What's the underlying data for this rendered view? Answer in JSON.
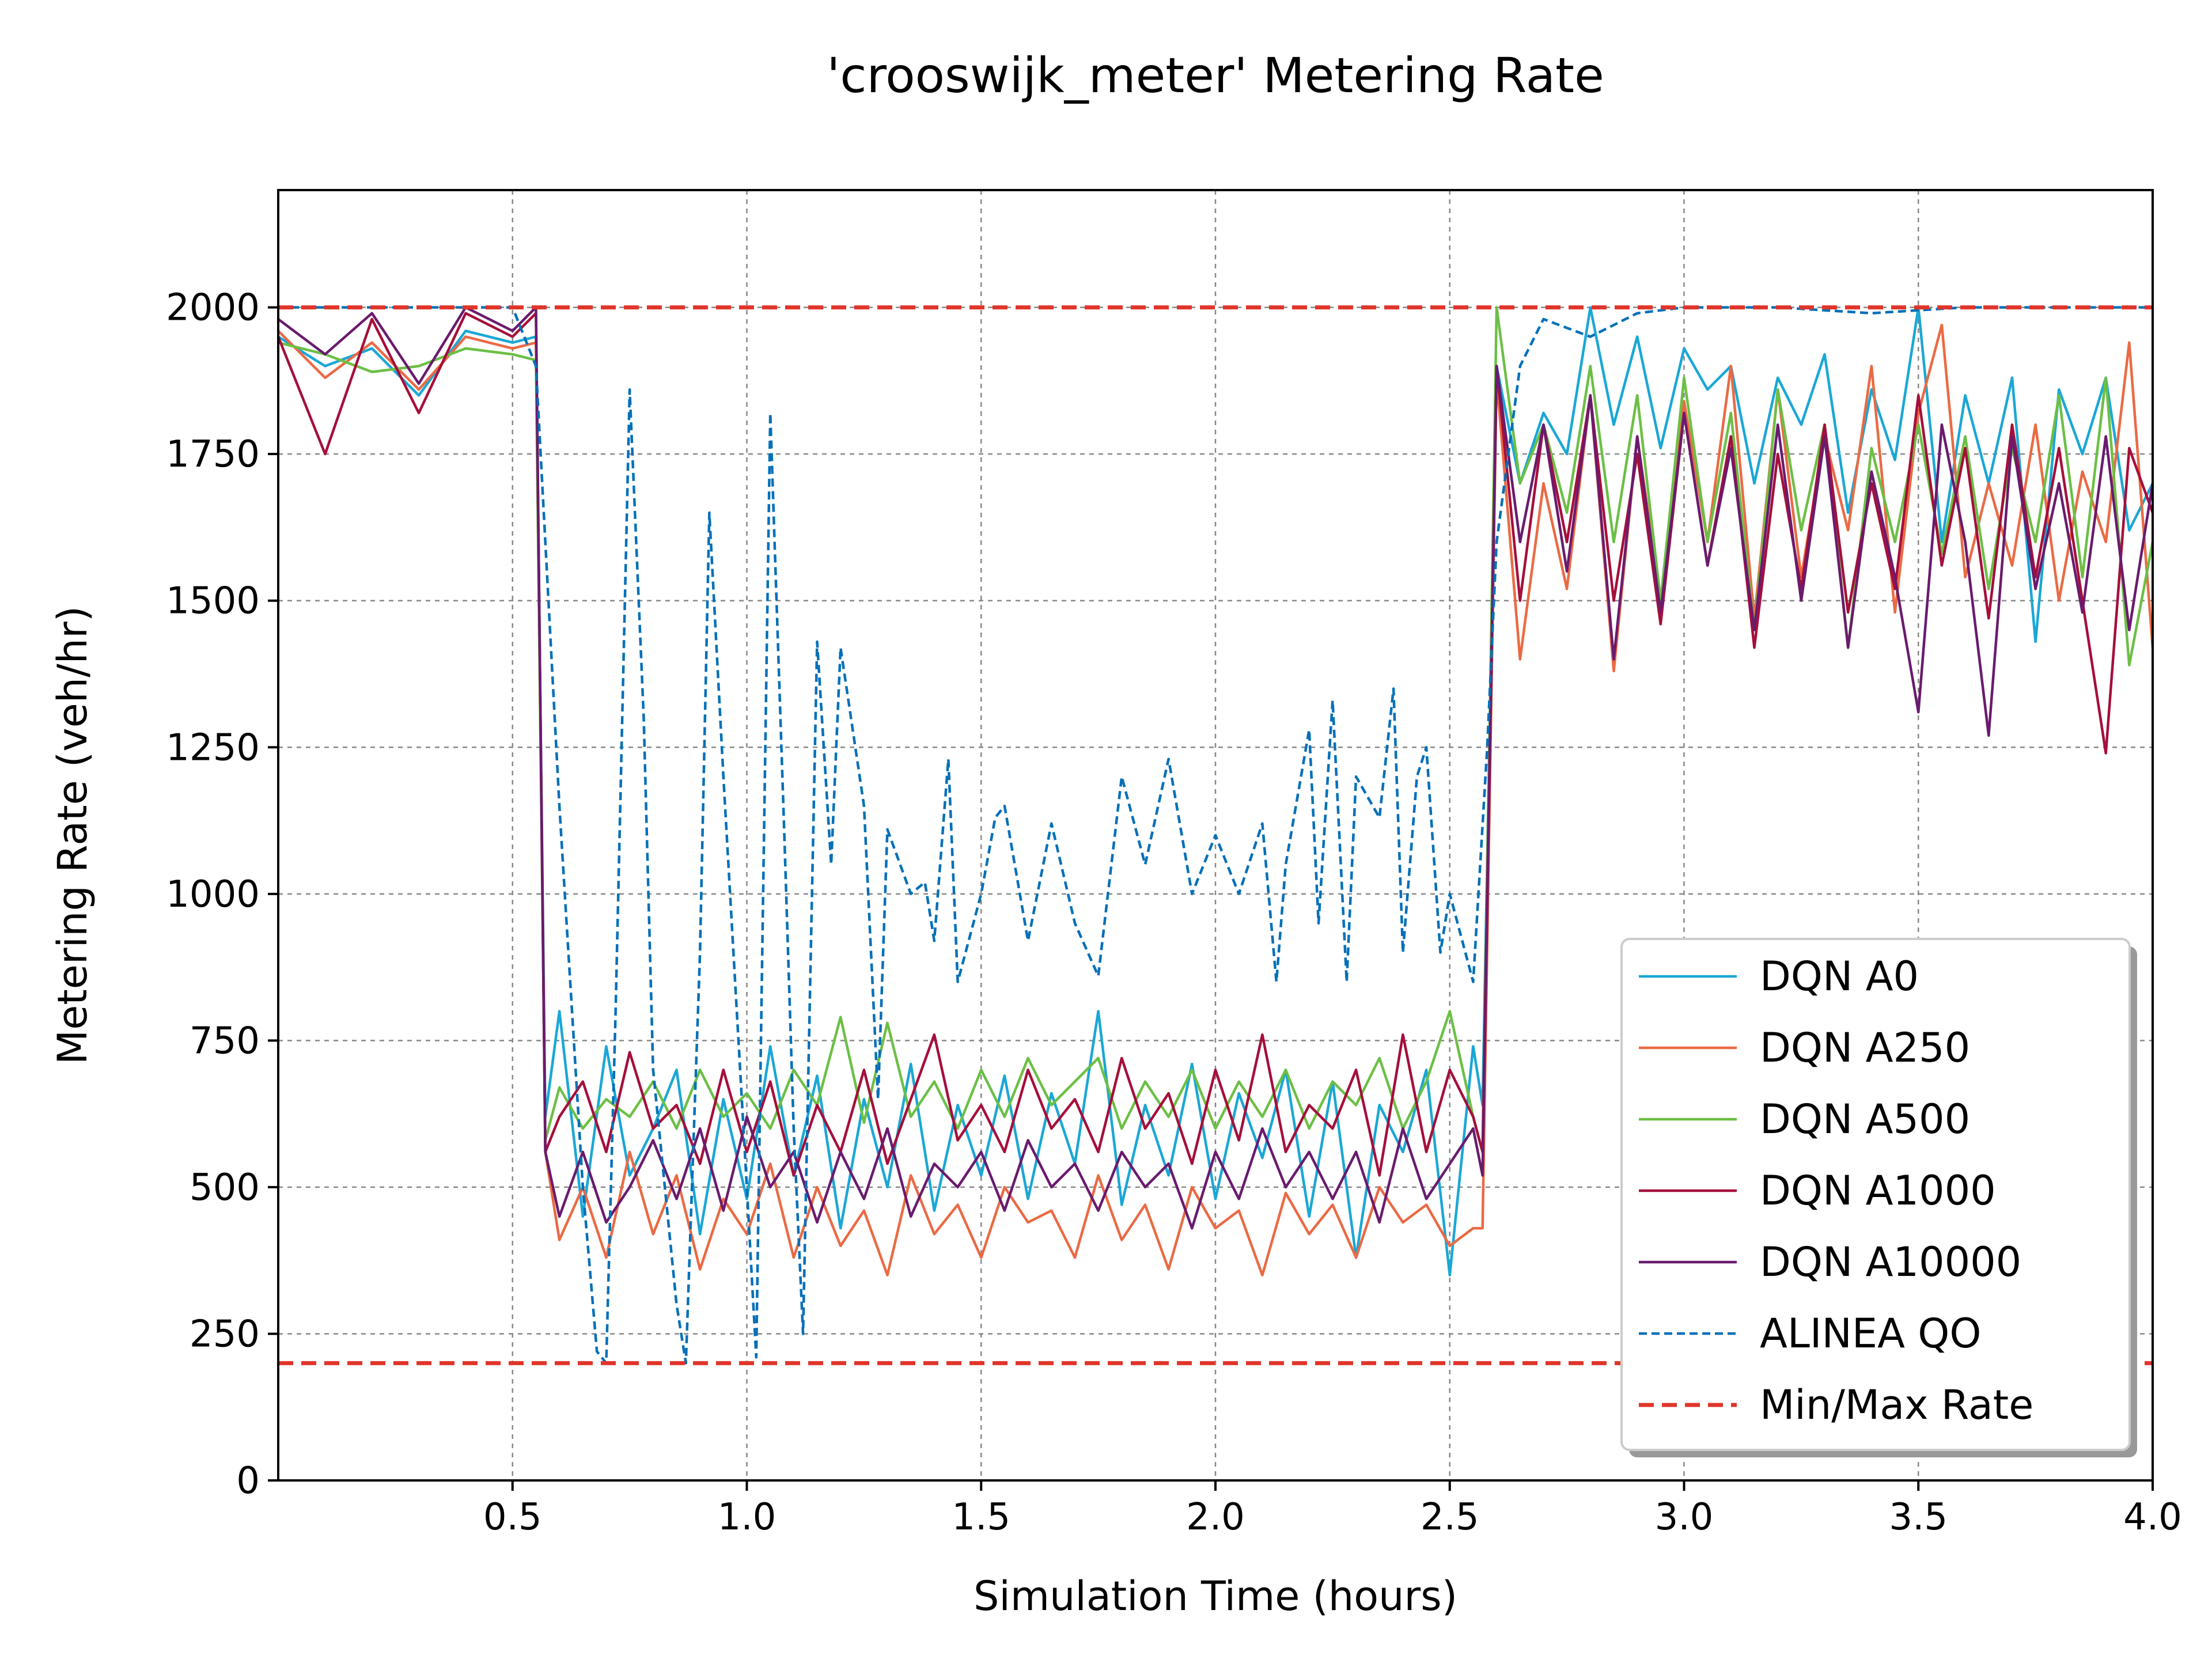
{
  "chart_data": {
    "type": "line",
    "title": "'crooswijk_meter' Metering Rate",
    "xlabel": "Simulation Time (hours)",
    "ylabel": "Metering Rate (veh/hr)",
    "xlim": [
      0.0,
      4.0
    ],
    "ylim": [
      0,
      2200
    ],
    "xticks": [
      0.5,
      1.0,
      1.5,
      2.0,
      2.5,
      3.0,
      3.5,
      4.0
    ],
    "xtick_labels": [
      "0.5",
      "1.0",
      "1.5",
      "2.0",
      "2.5",
      "3.0",
      "3.5",
      "4.0"
    ],
    "yticks": [
      0,
      250,
      500,
      750,
      1000,
      1250,
      1500,
      1750,
      2000
    ],
    "ytick_labels": [
      "0",
      "250",
      "500",
      "750",
      "1000",
      "1250",
      "1500",
      "1750",
      "2000"
    ],
    "grid": true,
    "legend_position": "lower-right",
    "reference_lines": [
      {
        "name": "Min/Max Rate",
        "values": [
          200,
          2000
        ],
        "color": "#e0352b",
        "style": "dashed"
      }
    ],
    "series": [
      {
        "name": "DQN A0",
        "color": "#1aa7d6",
        "style": "solid",
        "x": [
          0.0,
          0.1,
          0.2,
          0.3,
          0.4,
          0.5,
          0.55,
          0.57,
          0.6,
          0.65,
          0.7,
          0.75,
          0.8,
          0.85,
          0.9,
          0.95,
          1.0,
          1.05,
          1.1,
          1.15,
          1.2,
          1.25,
          1.3,
          1.35,
          1.4,
          1.45,
          1.5,
          1.55,
          1.6,
          1.65,
          1.7,
          1.75,
          1.8,
          1.85,
          1.9,
          1.95,
          2.0,
          2.05,
          2.1,
          2.15,
          2.2,
          2.25,
          2.3,
          2.35,
          2.4,
          2.45,
          2.5,
          2.55,
          2.57,
          2.6,
          2.65,
          2.7,
          2.75,
          2.8,
          2.85,
          2.9,
          2.95,
          3.0,
          3.05,
          3.1,
          3.15,
          3.2,
          3.25,
          3.3,
          3.35,
          3.4,
          3.45,
          3.5,
          3.55,
          3.6,
          3.65,
          3.7,
          3.75,
          3.8,
          3.85,
          3.9,
          3.95,
          4.0
        ],
        "values": [
          1950,
          1900,
          1930,
          1850,
          1960,
          1940,
          1950,
          620,
          800,
          450,
          740,
          520,
          600,
          700,
          420,
          650,
          480,
          740,
          520,
          690,
          430,
          650,
          500,
          710,
          460,
          640,
          520,
          690,
          480,
          660,
          540,
          800,
          470,
          640,
          520,
          710,
          480,
          660,
          550,
          700,
          450,
          680,
          380,
          640,
          560,
          700,
          350,
          740,
          640,
          1900,
          1700,
          1820,
          1750,
          2000,
          1800,
          1950,
          1760,
          1930,
          1860,
          1900,
          1700,
          1880,
          1800,
          1920,
          1650,
          1860,
          1740,
          2000,
          1600,
          1850,
          1700,
          1880,
          1430,
          1860,
          1750,
          1880,
          1620,
          1700
        ]
      },
      {
        "name": "DQN A250",
        "color": "#ea6a44",
        "style": "solid",
        "x": [
          0.0,
          0.1,
          0.2,
          0.3,
          0.4,
          0.5,
          0.55,
          0.57,
          0.6,
          0.65,
          0.7,
          0.75,
          0.8,
          0.85,
          0.9,
          0.95,
          1.0,
          1.05,
          1.1,
          1.15,
          1.2,
          1.25,
          1.3,
          1.35,
          1.4,
          1.45,
          1.5,
          1.55,
          1.6,
          1.65,
          1.7,
          1.75,
          1.8,
          1.85,
          1.9,
          1.95,
          2.0,
          2.05,
          2.1,
          2.15,
          2.2,
          2.25,
          2.3,
          2.35,
          2.4,
          2.45,
          2.5,
          2.55,
          2.57,
          2.6,
          2.65,
          2.7,
          2.75,
          2.8,
          2.85,
          2.9,
          2.95,
          3.0,
          3.05,
          3.1,
          3.15,
          3.2,
          3.25,
          3.3,
          3.35,
          3.4,
          3.45,
          3.5,
          3.55,
          3.6,
          3.65,
          3.7,
          3.75,
          3.8,
          3.85,
          3.9,
          3.95,
          4.0
        ],
        "values": [
          1960,
          1880,
          1940,
          1860,
          1950,
          1930,
          1940,
          560,
          410,
          500,
          380,
          560,
          420,
          520,
          360,
          480,
          420,
          540,
          380,
          500,
          400,
          460,
          350,
          520,
          420,
          470,
          380,
          500,
          440,
          460,
          380,
          520,
          410,
          470,
          360,
          500,
          430,
          460,
          350,
          490,
          420,
          470,
          380,
          500,
          440,
          470,
          400,
          430,
          430,
          1880,
          1400,
          1700,
          1520,
          1850,
          1380,
          1780,
          1500,
          1840,
          1600,
          1900,
          1470,
          1860,
          1540,
          1780,
          1620,
          1900,
          1480,
          1820,
          1970,
          1540,
          1700,
          1560,
          1800,
          1500,
          1720,
          1600,
          1940,
          1420
        ]
      },
      {
        "name": "DQN A500",
        "color": "#6cbf45",
        "style": "solid",
        "x": [
          0.0,
          0.1,
          0.2,
          0.3,
          0.4,
          0.5,
          0.55,
          0.57,
          0.6,
          0.65,
          0.7,
          0.75,
          0.8,
          0.85,
          0.9,
          0.95,
          1.0,
          1.05,
          1.1,
          1.15,
          1.2,
          1.25,
          1.3,
          1.35,
          1.4,
          1.45,
          1.5,
          1.55,
          1.6,
          1.65,
          1.7,
          1.75,
          1.8,
          1.85,
          1.9,
          1.95,
          2.0,
          2.05,
          2.1,
          2.15,
          2.2,
          2.25,
          2.3,
          2.35,
          2.4,
          2.45,
          2.5,
          2.55,
          2.57,
          2.6,
          2.65,
          2.7,
          2.75,
          2.8,
          2.85,
          2.9,
          2.95,
          3.0,
          3.05,
          3.1,
          3.15,
          3.2,
          3.25,
          3.3,
          3.35,
          3.4,
          3.45,
          3.5,
          3.55,
          3.6,
          3.65,
          3.7,
          3.75,
          3.8,
          3.85,
          3.9,
          3.95,
          4.0
        ],
        "values": [
          1940,
          1920,
          1890,
          1900,
          1930,
          1920,
          1910,
          580,
          670,
          600,
          650,
          620,
          680,
          600,
          700,
          620,
          660,
          600,
          700,
          640,
          790,
          610,
          780,
          620,
          680,
          600,
          700,
          620,
          720,
          640,
          680,
          720,
          600,
          680,
          620,
          700,
          600,
          680,
          620,
          700,
          600,
          680,
          640,
          720,
          600,
          680,
          800,
          620,
          560,
          2000,
          1700,
          1800,
          1650,
          1900,
          1600,
          1850,
          1500,
          1880,
          1600,
          1820,
          1450,
          1860,
          1620,
          1800,
          1420,
          1760,
          1600,
          1800,
          1580,
          1780,
          1520,
          1760,
          1600,
          1850,
          1540,
          1880,
          1390,
          1600
        ]
      },
      {
        "name": "DQN A1000",
        "color": "#a50f3b",
        "style": "solid",
        "x": [
          0.0,
          0.1,
          0.2,
          0.3,
          0.4,
          0.5,
          0.55,
          0.57,
          0.6,
          0.65,
          0.7,
          0.75,
          0.8,
          0.85,
          0.9,
          0.95,
          1.0,
          1.05,
          1.1,
          1.15,
          1.2,
          1.25,
          1.3,
          1.35,
          1.4,
          1.45,
          1.5,
          1.55,
          1.6,
          1.65,
          1.7,
          1.75,
          1.8,
          1.85,
          1.9,
          1.95,
          2.0,
          2.05,
          2.1,
          2.15,
          2.2,
          2.25,
          2.3,
          2.35,
          2.4,
          2.45,
          2.5,
          2.55,
          2.57,
          2.6,
          2.65,
          2.7,
          2.75,
          2.8,
          2.85,
          2.9,
          2.95,
          3.0,
          3.05,
          3.1,
          3.15,
          3.2,
          3.25,
          3.3,
          3.35,
          3.4,
          3.45,
          3.5,
          3.55,
          3.6,
          3.65,
          3.7,
          3.75,
          3.8,
          3.85,
          3.9,
          3.95,
          4.0
        ],
        "values": [
          1950,
          1750,
          1980,
          1820,
          1990,
          1950,
          1990,
          560,
          620,
          680,
          560,
          730,
          600,
          640,
          540,
          700,
          560,
          680,
          520,
          640,
          560,
          700,
          540,
          650,
          760,
          580,
          640,
          560,
          700,
          600,
          650,
          560,
          720,
          600,
          660,
          540,
          700,
          580,
          760,
          560,
          640,
          600,
          700,
          520,
          760,
          560,
          700,
          620,
          560,
          1900,
          1500,
          1800,
          1600,
          1850,
          1500,
          1750,
          1460,
          1820,
          1560,
          1780,
          1420,
          1750,
          1520,
          1800,
          1480,
          1700,
          1520,
          1850,
          1560,
          1760,
          1470,
          1800,
          1540,
          1760,
          1500,
          1240,
          1760,
          1650
        ]
      },
      {
        "name": "DQN A10000",
        "color": "#6a1b6e",
        "style": "solid",
        "x": [
          0.0,
          0.1,
          0.2,
          0.3,
          0.4,
          0.5,
          0.55,
          0.57,
          0.6,
          0.65,
          0.7,
          0.75,
          0.8,
          0.85,
          0.9,
          0.95,
          1.0,
          1.05,
          1.1,
          1.15,
          1.2,
          1.25,
          1.3,
          1.35,
          1.4,
          1.45,
          1.5,
          1.55,
          1.6,
          1.65,
          1.7,
          1.75,
          1.8,
          1.85,
          1.9,
          1.95,
          2.0,
          2.05,
          2.1,
          2.15,
          2.2,
          2.25,
          2.3,
          2.35,
          2.4,
          2.45,
          2.5,
          2.55,
          2.57,
          2.6,
          2.65,
          2.7,
          2.75,
          2.8,
          2.85,
          2.9,
          2.95,
          3.0,
          3.05,
          3.1,
          3.15,
          3.2,
          3.25,
          3.3,
          3.35,
          3.4,
          3.45,
          3.5,
          3.55,
          3.6,
          3.65,
          3.7,
          3.75,
          3.8,
          3.85,
          3.9,
          3.95,
          4.0
        ],
        "values": [
          1980,
          1920,
          1990,
          1870,
          2000,
          1960,
          2000,
          560,
          450,
          560,
          440,
          500,
          580,
          480,
          600,
          460,
          620,
          500,
          560,
          440,
          560,
          480,
          600,
          450,
          540,
          500,
          560,
          460,
          580,
          500,
          540,
          460,
          560,
          500,
          540,
          430,
          560,
          480,
          600,
          500,
          560,
          480,
          560,
          440,
          600,
          480,
          540,
          600,
          520,
          1900,
          1600,
          1800,
          1550,
          1850,
          1400,
          1780,
          1480,
          1820,
          1560,
          1760,
          1450,
          1800,
          1500,
          1780,
          1420,
          1720,
          1540,
          1310,
          1800,
          1600,
          1270,
          1780,
          1520,
          1700,
          1480,
          1780,
          1450,
          1700
        ]
      },
      {
        "name": "ALINEA QO",
        "color": "#0570b8",
        "style": "dotted",
        "x": [
          0.0,
          0.5,
          0.55,
          0.6,
          0.65,
          0.68,
          0.7,
          0.72,
          0.75,
          0.78,
          0.8,
          0.85,
          0.87,
          0.9,
          0.92,
          0.95,
          1.0,
          1.02,
          1.05,
          1.08,
          1.1,
          1.12,
          1.15,
          1.18,
          1.2,
          1.25,
          1.28,
          1.3,
          1.35,
          1.38,
          1.4,
          1.43,
          1.45,
          1.5,
          1.53,
          1.55,
          1.6,
          1.65,
          1.7,
          1.75,
          1.8,
          1.85,
          1.9,
          1.95,
          2.0,
          2.05,
          2.1,
          2.13,
          2.15,
          2.2,
          2.22,
          2.25,
          2.28,
          2.3,
          2.35,
          2.38,
          2.4,
          2.43,
          2.45,
          2.48,
          2.5,
          2.55,
          2.58,
          2.6,
          2.65,
          2.7,
          2.8,
          2.9,
          3.0,
          3.2,
          3.4,
          3.6,
          3.8,
          4.0
        ],
        "values": [
          2000,
          2000,
          1900,
          1150,
          500,
          220,
          200,
          800,
          1860,
          1300,
          700,
          300,
          200,
          900,
          1650,
          1200,
          500,
          210,
          1820,
          1100,
          600,
          250,
          1430,
          1050,
          1420,
          1150,
          650,
          1110,
          1000,
          1020,
          920,
          1230,
          850,
          1000,
          1130,
          1150,
          920,
          1120,
          950,
          860,
          1200,
          1050,
          1230,
          1000,
          1100,
          1000,
          1120,
          850,
          1050,
          1280,
          950,
          1330,
          850,
          1200,
          1130,
          1350,
          900,
          1200,
          1250,
          900,
          1000,
          850,
          1250,
          1600,
          1900,
          1980,
          1950,
          1990,
          2000,
          2000,
          1990,
          2000,
          2000,
          2000
        ]
      }
    ]
  }
}
